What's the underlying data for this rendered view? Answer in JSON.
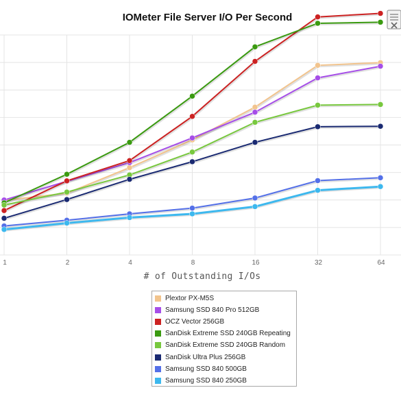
{
  "chart_data": {
    "type": "line",
    "title": "IOMeter File Server I/O Per Second",
    "xlabel": "# of Outstanding I/Os",
    "ylabel": "",
    "categories": [
      "1",
      "2",
      "4",
      "8",
      "16",
      "32",
      "64"
    ],
    "grid": true,
    "legend_position": "bottom",
    "series": [
      {
        "name": "Plextor PX-M5S",
        "color": "#f2c48d",
        "values": [
          0.248,
          0.281,
          0.397,
          0.523,
          0.672,
          0.862,
          0.874
        ]
      },
      {
        "name": "Samsung SSD 840 Pro 512GB",
        "color": "#a64ee8",
        "values": [
          0.25,
          0.335,
          0.42,
          0.532,
          0.649,
          0.805,
          0.858
        ]
      },
      {
        "name": "OCZ Vector 256GB",
        "color": "#cc2222",
        "values": [
          0.202,
          0.337,
          0.429,
          0.63,
          0.88,
          1.082,
          1.098
        ]
      },
      {
        "name": "SanDisk Extreme SSD 240GB Repeating",
        "color": "#3a9a10",
        "values": [
          0.237,
          0.367,
          0.512,
          0.722,
          0.946,
          1.053,
          1.058
        ]
      },
      {
        "name": "SanDisk Extreme SSD 240GB Random",
        "color": "#78c83e",
        "values": [
          0.227,
          0.286,
          0.364,
          0.468,
          0.603,
          0.681,
          0.684
        ]
      },
      {
        "name": "SanDisk Ultra Plus 256GB",
        "color": "#1a2a72",
        "values": [
          0.167,
          0.252,
          0.344,
          0.424,
          0.512,
          0.583,
          0.585
        ]
      },
      {
        "name": "Samsung SSD 840 500GB",
        "color": "#5470e8",
        "values": [
          0.132,
          0.158,
          0.187,
          0.213,
          0.259,
          0.338,
          0.351
        ]
      },
      {
        "name": "Samsung SSD 840 250GB",
        "color": "#3db8ee",
        "values": [
          0.116,
          0.145,
          0.17,
          0.187,
          0.22,
          0.294,
          0.311
        ]
      }
    ]
  }
}
